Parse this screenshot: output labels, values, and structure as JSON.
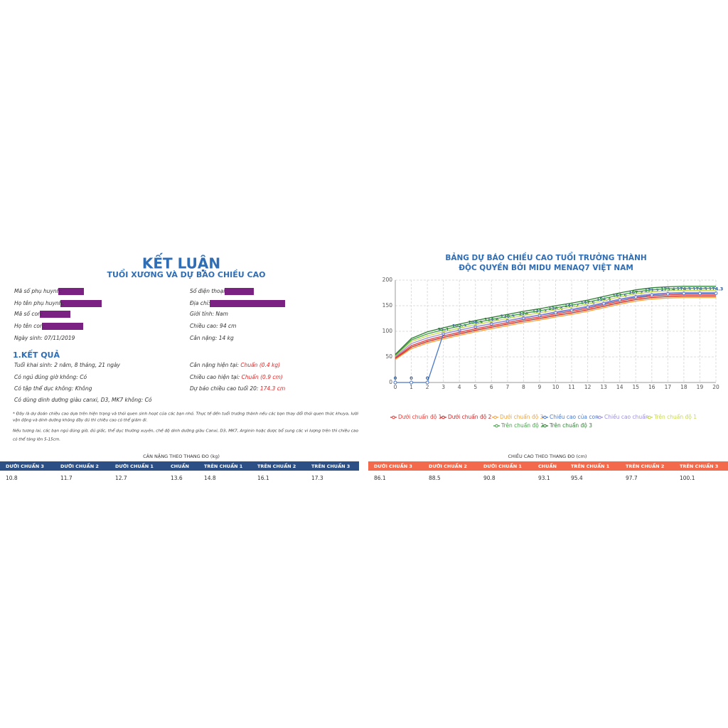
{
  "header": {
    "title": "KẾT LUẬN",
    "subtitle": "TUỔI XƯƠNG VÀ DỰ BÁO CHIỀU CAO"
  },
  "info": {
    "left": [
      "Mã số phụ huynh:",
      "Họ tên phụ huynh:",
      "Mã số con:",
      "Họ tên con:",
      "Ngày sinh: 07/11/2019"
    ],
    "right": [
      "Số điện thoại:",
      "Địa chỉ:",
      "Giới tính: Nam",
      "Chiều cao: 94 cm",
      "Cân nặng: 14 kg"
    ]
  },
  "results": {
    "title": "1.KẾT QUẢ",
    "left": [
      "Tuổi khai sinh: 2 năm, 8 tháng, 21 ngày",
      "Có ngủ đúng giờ không: Có",
      "Có tập thể dục không: Không",
      "Có dùng dinh dưỡng giàu canxi, D3, MK7 không: Có"
    ],
    "right": [
      {
        "label": "Cân nặng hiện tại: ",
        "value": "Chuẩn (0.4 kg)"
      },
      {
        "label": "Chiều cao hiện tại: ",
        "value": "Chuẩn (0.9 cm)"
      },
      {
        "label": "Dự báo chiều cao tuổi 20: ",
        "value": "174.3 cm"
      }
    ]
  },
  "notes": [
    "* Đây là dự đoán chiều cao dựa trên hiện trạng và thói quen sinh hoạt của các bạn nhỏ. Thực tế đến tuổi trưởng thành nếu các bạn thay đổi thói quen thức khuya, lười",
    "vận động và dinh dưỡng không đầy đủ thì chiều cao có thể giảm đi.",
    "Nếu tương lai, các bạn ngủ đúng giờ, đủ giấc, thể dục thường xuyên, chế độ dinh dưỡng giàu Canxi, D3, MK7, Arginin hoặc được bổ sung các vi lượng trên thì chiều cao",
    "có thể tăng lên 5-15cm."
  ],
  "weight_table": {
    "title": "CÂN NẶNG THEO THANG ĐO (kg)",
    "headers": [
      "DƯỚI CHUẨN 3",
      "DƯỚI CHUẨN 2",
      "DƯỚI CHUẨN 1",
      "CHUẨN",
      "TRÊN CHUẨN 1",
      "TRÊN CHUẨN 2",
      "TRÊN CHUẨN 3"
    ],
    "rows": [
      [
        10.8,
        11.7,
        12.7,
        13.6,
        14.8,
        16.1,
        17.3
      ]
    ]
  },
  "height_table": {
    "title": "CHIỀU CAO THEO THANG ĐO (cm)",
    "headers": [
      "DƯỚI CHUẨN 3",
      "DƯỚI CHUẨN 2",
      "DƯỚI CHUẨN 1",
      "CHUẨN",
      "TRÊN CHUẨN 1",
      "TRÊN CHUẨN 2",
      "TRÊN CHUẨN 3"
    ],
    "rows": [
      [
        86.1,
        88.5,
        90.8,
        93.1,
        95.4,
        97.7,
        100.1
      ]
    ]
  },
  "chart_data": {
    "type": "line",
    "title": "BẢNG DỰ BÁO CHIỀU CAO TUỔI TRƯỞNG THÀNH",
    "subtitle": "ĐỘC QUYỀN BỞI MIDU MENAQ7 VIỆT NAM",
    "x": [
      0,
      1,
      2,
      3,
      4,
      5,
      6,
      7,
      8,
      9,
      10,
      11,
      12,
      13,
      14,
      15,
      16,
      17,
      18,
      19,
      20
    ],
    "xlim": [
      0,
      20
    ],
    "xticks": [
      0,
      1,
      2,
      3,
      4,
      5,
      6,
      7,
      8,
      9,
      10,
      11,
      12,
      13,
      14,
      15,
      16,
      17,
      18,
      19,
      20
    ],
    "ylim": [
      0,
      200
    ],
    "yticks": [
      0,
      50,
      100,
      150,
      200
    ],
    "grid": true,
    "legend": "bottom",
    "series": [
      {
        "name": "Dưới chuẩn độ 1",
        "color": "#e53935",
        "values": [
          48,
          72,
          83,
          91,
          98,
          105,
          111,
          117,
          123,
          128,
          134,
          139,
          145,
          152,
          159,
          165,
          169,
          171,
          172,
          172,
          172
        ]
      },
      {
        "name": "Dưới chuẩn độ 2",
        "color": "#c62828",
        "values": [
          46,
          69,
          80,
          88,
          95,
          102,
          108,
          114,
          120,
          125,
          131,
          136,
          142,
          149,
          156,
          162,
          166,
          168,
          169,
          169,
          169
        ]
      },
      {
        "name": "Dưới chuẩn độ 3",
        "color": "#f2a23a",
        "values": [
          45,
          66,
          77,
          85,
          92,
          99,
          105,
          111,
          117,
          122,
          128,
          133,
          139,
          146,
          153,
          159,
          163,
          165,
          166,
          166,
          166
        ]
      },
      {
        "name": "Chiều cao của con",
        "color": "#4a78c8",
        "markers": true,
        "data_labels": true,
        "values": [
          0,
          0,
          0,
          95.1,
          102.3,
          108.9,
          114.6,
          120.5,
          126,
          131.3,
          136.4,
          141.7,
          147.6,
          154.4,
          161.6,
          167.3,
          171.2,
          173.4,
          174.3,
          174.3,
          174.3
        ]
      },
      {
        "name": "Chiều cao chuẩn",
        "color": "#9b8fe0",
        "values": [
          50,
          76,
          87,
          95,
          102,
          109,
          115,
          121,
          127,
          132,
          138,
          143,
          149,
          156,
          163,
          169,
          173,
          175,
          176,
          176,
          176
        ]
      },
      {
        "name": "Trên chuẩn độ 1",
        "color": "#c8d94a",
        "values": [
          52,
          80,
          91,
          99,
          106,
          113,
          119,
          125,
          131,
          136,
          142,
          147,
          153,
          160,
          167,
          173,
          177,
          179,
          180,
          180,
          180
        ]
      },
      {
        "name": "Trên chuẩn độ 2",
        "color": "#43a047",
        "values": [
          53,
          83,
          95,
          103,
          110,
          117,
          123,
          129,
          135,
          140,
          146,
          151,
          157,
          164,
          171,
          177,
          181,
          183,
          184,
          184,
          184
        ]
      },
      {
        "name": "Trên chuẩn độ 3",
        "color": "#2e7d32",
        "values": [
          55,
          86,
          99,
          107,
          114,
          121,
          127,
          133,
          139,
          144,
          150,
          155,
          161,
          168,
          175,
          181,
          185,
          187,
          188,
          188,
          188
        ]
      }
    ]
  }
}
